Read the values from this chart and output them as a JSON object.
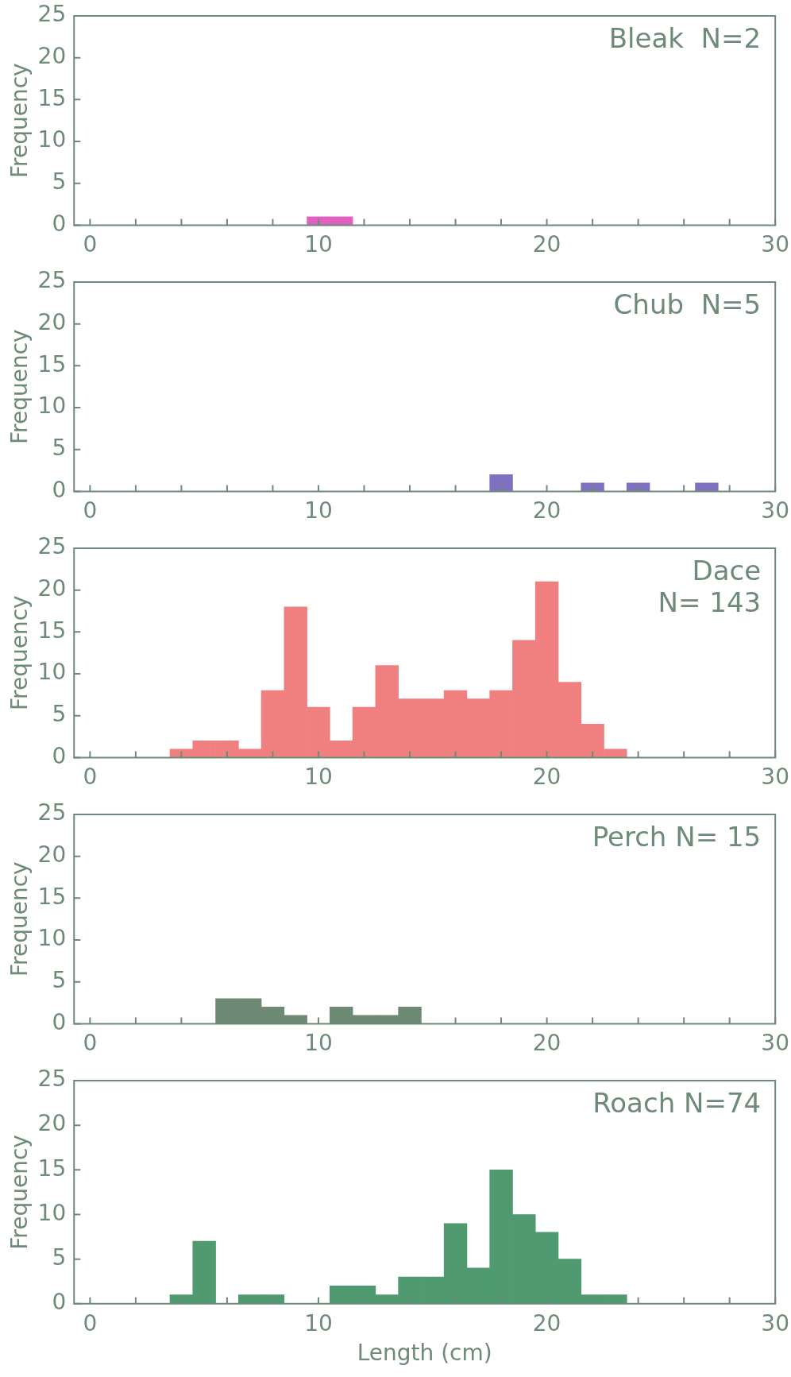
{
  "chart_data": [
    {
      "type": "histogram",
      "ylabel": "Frequency",
      "annotations": [
        "Bleak  N=2"
      ],
      "bins": [
        9.5,
        10.5,
        11.5
      ],
      "values": [
        1,
        1
      ],
      "color": "#e060c0",
      "xlim": [
        -0.7,
        30
      ],
      "xticks": [
        0,
        {
          "value": 2,
          "label": null
        },
        {
          "value": 4,
          "label": null
        },
        {
          "value": 6,
          "label": null
        },
        {
          "value": 8,
          "label": null
        },
        10,
        {
          "value": 12,
          "label": null
        },
        {
          "value": 14,
          "label": null
        },
        {
          "value": 16,
          "label": null
        },
        {
          "value": 18,
          "label": null
        },
        20,
        {
          "value": 22,
          "label": null
        },
        {
          "value": 24,
          "label": null
        },
        {
          "value": 26,
          "label": null
        },
        {
          "value": 28,
          "label": null
        },
        30
      ],
      "ylim": [
        0,
        25
      ],
      "yticks": [
        0,
        5,
        10,
        15,
        20,
        25
      ]
    },
    {
      "type": "histogram",
      "ylabel": "Frequency",
      "annotations": [
        "Chub  N=5"
      ],
      "bins": [
        17.5,
        18.5,
        19.5,
        20.5,
        21.5,
        22.5,
        23.5,
        24.5,
        25.5,
        26.5,
        27.5
      ],
      "values": [
        2,
        0,
        0,
        0,
        1,
        0,
        1,
        0,
        0,
        1
      ],
      "color": "#8070c0",
      "xlim": [
        -0.7,
        30
      ],
      "xticks": [
        0,
        {
          "value": 2,
          "label": null
        },
        {
          "value": 4,
          "label": null
        },
        {
          "value": 6,
          "label": null
        },
        {
          "value": 8,
          "label": null
        },
        10,
        {
          "value": 12,
          "label": null
        },
        {
          "value": 14,
          "label": null
        },
        {
          "value": 16,
          "label": null
        },
        {
          "value": 18,
          "label": null
        },
        20,
        {
          "value": 22,
          "label": null
        },
        {
          "value": 24,
          "label": null
        },
        {
          "value": 26,
          "label": null
        },
        {
          "value": 28,
          "label": null
        },
        30
      ],
      "ylim": [
        0,
        25
      ],
      "yticks": [
        0,
        5,
        10,
        15,
        20,
        25
      ]
    },
    {
      "type": "histogram",
      "ylabel": "Frequency",
      "annotations": [
        "Dace\nN= 143"
      ],
      "bins": [
        3.5,
        4.5,
        5.5,
        6.5,
        7.5,
        8.5,
        9.5,
        10.5,
        11.5,
        12.5,
        13.5,
        14.5,
        15.5,
        16.5,
        17.5,
        18.5,
        19.5,
        20.5,
        21.5,
        22.5,
        23.5
      ],
      "values": [
        1,
        2,
        2,
        1,
        8,
        18,
        6,
        2,
        6,
        11,
        7,
        7,
        8,
        7,
        8,
        14,
        21,
        9,
        4,
        1
      ],
      "color": "#f08080",
      "xlim": [
        -0.7,
        30
      ],
      "xticks": [
        0,
        {
          "value": 2,
          "label": null
        },
        {
          "value": 4,
          "label": null
        },
        {
          "value": 6,
          "label": null
        },
        {
          "value": 8,
          "label": null
        },
        10,
        {
          "value": 12,
          "label": null
        },
        {
          "value": 14,
          "label": null
        },
        {
          "value": 16,
          "label": null
        },
        {
          "value": 18,
          "label": null
        },
        20,
        {
          "value": 22,
          "label": null
        },
        {
          "value": 24,
          "label": null
        },
        {
          "value": 26,
          "label": null
        },
        {
          "value": 28,
          "label": null
        },
        30
      ],
      "ylim": [
        0,
        25
      ],
      "yticks": [
        0,
        5,
        10,
        15,
        20,
        25
      ]
    },
    {
      "type": "histogram",
      "ylabel": "Frequency",
      "annotations": [
        "Perch N= 15"
      ],
      "bins": [
        5.5,
        6.5,
        7.5,
        8.5,
        9.5,
        10.5,
        11.5,
        12.5,
        13.5,
        14.5
      ],
      "values": [
        3,
        3,
        2,
        1,
        0,
        2,
        1,
        1,
        2
      ],
      "color": "#6f8a74",
      "xlim": [
        -0.7,
        30
      ],
      "xticks": [
        0,
        {
          "value": 2,
          "label": null
        },
        {
          "value": 4,
          "label": null
        },
        {
          "value": 6,
          "label": null
        },
        {
          "value": 8,
          "label": null
        },
        10,
        {
          "value": 12,
          "label": null
        },
        {
          "value": 14,
          "label": null
        },
        {
          "value": 16,
          "label": null
        },
        {
          "value": 18,
          "label": null
        },
        20,
        {
          "value": 22,
          "label": null
        },
        {
          "value": 24,
          "label": null
        },
        {
          "value": 26,
          "label": null
        },
        {
          "value": 28,
          "label": null
        },
        30
      ],
      "ylim": [
        0,
        25
      ],
      "yticks": [
        0,
        5,
        10,
        15,
        20,
        25
      ]
    },
    {
      "type": "histogram",
      "xlabel": "Length (cm)",
      "ylabel": "Frequency",
      "annotations": [
        "Roach N=74"
      ],
      "bins": [
        3.5,
        4.5,
        5.5,
        6.5,
        7.5,
        8.5,
        9.5,
        10.5,
        11.5,
        12.5,
        13.5,
        14.5,
        15.5,
        16.5,
        17.5,
        18.5,
        19.5,
        20.5,
        21.5,
        22.5,
        23.5
      ],
      "values": [
        1,
        7,
        0,
        1,
        1,
        0,
        0,
        2,
        2,
        1,
        3,
        3,
        9,
        4,
        15,
        10,
        8,
        5,
        1,
        1
      ],
      "color": "#4f9a70",
      "xlim": [
        -0.7,
        30
      ],
      "xticks": [
        0,
        {
          "value": 2,
          "label": null
        },
        {
          "value": 4,
          "label": null
        },
        {
          "value": 6,
          "label": null
        },
        {
          "value": 8,
          "label": null
        },
        10,
        {
          "value": 12,
          "label": null
        },
        {
          "value": 14,
          "label": null
        },
        {
          "value": 16,
          "label": null
        },
        {
          "value": 18,
          "label": null
        },
        20,
        {
          "value": 22,
          "label": null
        },
        {
          "value": 24,
          "label": null
        },
        {
          "value": 26,
          "label": null
        },
        {
          "value": 28,
          "label": null
        },
        30
      ],
      "ylim": [
        0,
        25
      ],
      "yticks": [
        0,
        5,
        10,
        15,
        20,
        25
      ]
    }
  ]
}
